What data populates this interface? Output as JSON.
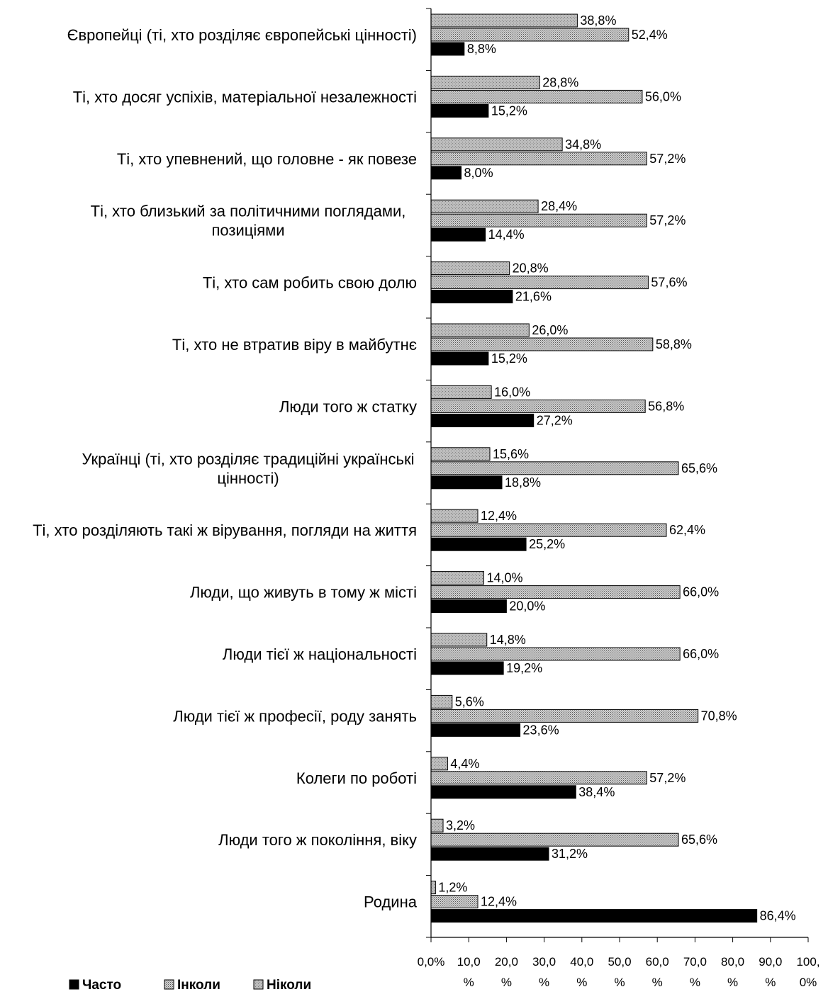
{
  "chart_data": {
    "type": "bar",
    "orientation": "horizontal",
    "categories": [
      "Європейці (ті, хто розділяє європейські цінності)",
      "Ті, хто досяг успіхів, матеріальної незалежності",
      "Ті, хто упевнений, що головне - як повезе",
      "Ті, хто близький за політичними поглядами, позиціями",
      "Ті, хто сам робить свою долю",
      "Ті, хто не втратив віру в майбутнє",
      "Люди того ж статку",
      "Українці (ті, хто розділяє традиційні українські цінності)",
      "Ті, хто розділяють такі ж вірування, погляди на життя",
      "Люди, що живуть в тому ж місті",
      "Люди тієї ж національності",
      "Люди тієї ж професії, роду занять",
      "Колеги по роботі",
      "Люди того ж покоління, віку",
      "Родина"
    ],
    "category_lines": [
      [
        "Європейці (ті, хто розділяє європейські цінності)"
      ],
      [
        "Ті, хто досяг успіхів, матеріальної незалежності"
      ],
      [
        "Ті, хто упевнений, що головне - як повезе"
      ],
      [
        "Ті, хто близький за політичними поглядами,",
        "позиціями"
      ],
      [
        "Ті, хто сам робить свою долю"
      ],
      [
        "Ті, хто не втратив віру в майбутнє"
      ],
      [
        "Люди того ж статку"
      ],
      [
        "Українці (ті, хто розділяє традиційні українські",
        "цінності)"
      ],
      [
        "Ті, хто розділяють такі ж вірування, погляди на життя"
      ],
      [
        "Люди, що живуть в тому ж місті"
      ],
      [
        "Люди тієї ж національності"
      ],
      [
        "Люди тієї ж професії, роду занять"
      ],
      [
        "Колеги по роботі"
      ],
      [
        "Люди того ж покоління, віку"
      ],
      [
        "Родина"
      ]
    ],
    "series": [
      {
        "name": "Ніколи",
        "color": "#b4b4b4",
        "pattern": "light",
        "values": [
          38.8,
          28.8,
          34.8,
          28.4,
          20.8,
          26.0,
          16.0,
          15.6,
          12.4,
          14.0,
          14.8,
          5.6,
          4.4,
          3.2,
          1.2
        ],
        "labels": [
          "38,8%",
          "28,8%",
          "34,8%",
          "28,4%",
          "20,8%",
          "26,0%",
          "16,0%",
          "15,6%",
          "12,4%",
          "14,0%",
          "14,8%",
          "5,6%",
          "4,4%",
          "3,2%",
          "1,2%"
        ]
      },
      {
        "name": "Інколи",
        "color": "#9a9a9a",
        "pattern": "dense",
        "values": [
          52.4,
          56.0,
          57.2,
          57.2,
          57.6,
          58.8,
          56.8,
          65.6,
          62.4,
          66.0,
          66.0,
          70.8,
          57.2,
          65.6,
          12.4
        ],
        "labels": [
          "52,4%",
          "56,0%",
          "57,2%",
          "57,2%",
          "57,6%",
          "58,8%",
          "56,8%",
          "65,6%",
          "62,4%",
          "66,0%",
          "66,0%",
          "70,8%",
          "57,2%",
          "65,6%",
          "12,4%"
        ]
      },
      {
        "name": "Часто",
        "color": "#000000",
        "pattern": "solid",
        "values": [
          8.8,
          15.2,
          8.0,
          14.4,
          21.6,
          15.2,
          27.2,
          18.8,
          25.2,
          20.0,
          19.2,
          23.6,
          38.4,
          31.2,
          86.4
        ],
        "labels": [
          "8,8%",
          "15,2%",
          "8,0%",
          "14,4%",
          "21,6%",
          "15,2%",
          "27,2%",
          "18,8%",
          "25,2%",
          "20,0%",
          "19,2%",
          "23,6%",
          "38,4%",
          "31,2%",
          "86,4%"
        ]
      }
    ],
    "xlim": [
      0,
      100
    ],
    "x_ticks": [
      0,
      10,
      20,
      30,
      40,
      50,
      60,
      70,
      80,
      90,
      100
    ],
    "x_tick_labels": [
      [
        "0,0%"
      ],
      [
        "10,0",
        "%"
      ],
      [
        "20,0",
        "%"
      ],
      [
        "30,0",
        "%"
      ],
      [
        "40,0",
        "%"
      ],
      [
        "50,0",
        "%"
      ],
      [
        "60,0",
        "%"
      ],
      [
        "70,0",
        "%"
      ],
      [
        "80,0",
        "%"
      ],
      [
        "90,0",
        "%"
      ],
      [
        "100,",
        "0%"
      ]
    ],
    "legend": {
      "placement": "bottom-left",
      "entries": [
        {
          "name": "Часто",
          "series": 2
        },
        {
          "name": "Інколи",
          "series": 1
        },
        {
          "name": "Ніколи",
          "series": 0
        }
      ]
    },
    "grid": false
  }
}
